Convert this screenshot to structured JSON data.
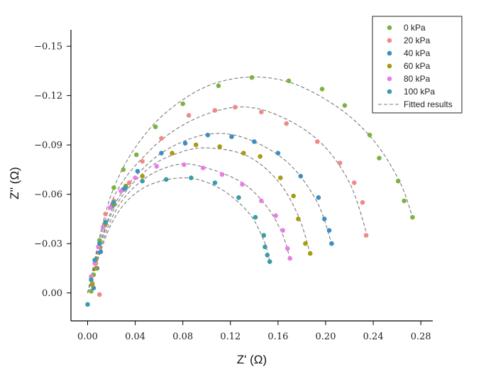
{
  "chart_data": {
    "type": "scatter",
    "title": "",
    "xlabel": "Z' (Ω)",
    "ylabel": "Z'' (Ω)",
    "xlim": [
      -0.014,
      0.29
    ],
    "ylim": [
      0.017,
      -0.16
    ],
    "y_axis_inverted": true,
    "xticks": [
      0.0,
      0.04,
      0.08,
      0.12,
      0.16,
      0.2,
      0.24,
      0.28
    ],
    "xtick_labels": [
      "0.00",
      "0.04",
      "0.08",
      "0.12",
      "0.16",
      "0.20",
      "0.24",
      "0.28"
    ],
    "yticks": [
      0.0,
      -0.03,
      -0.06,
      -0.09,
      -0.12,
      -0.15
    ],
    "ytick_labels": [
      "0.00",
      "−0.03",
      "−0.06",
      "−0.09",
      "−0.12",
      "−0.15"
    ],
    "grid": false,
    "legend_position": "top-right",
    "fit_label": "Fitted results",
    "fit_color": "#7a7a7a",
    "series": [
      {
        "name": "0 kPa",
        "color": "#7bb342",
        "x": [
          0.003,
          0.005,
          0.007,
          0.01,
          0.015,
          0.022,
          0.03,
          0.041,
          0.057,
          0.08,
          0.11,
          0.138,
          0.169,
          0.197,
          0.216,
          0.237,
          0.245,
          0.261,
          0.266,
          0.273
        ],
        "y": [
          -0.001,
          -0.011,
          -0.02,
          -0.032,
          -0.042,
          -0.064,
          -0.075,
          -0.084,
          -0.101,
          -0.115,
          -0.126,
          -0.131,
          -0.129,
          -0.124,
          -0.114,
          -0.096,
          -0.082,
          -0.068,
          -0.056,
          -0.046
        ],
        "fit": [
          [
            0.0,
            0.0
          ],
          [
            0.02,
            -0.06
          ],
          [
            0.05,
            -0.098
          ],
          [
            0.09,
            -0.122
          ],
          [
            0.13,
            -0.131
          ],
          [
            0.17,
            -0.128
          ],
          [
            0.21,
            -0.113
          ],
          [
            0.24,
            -0.093
          ],
          [
            0.262,
            -0.068
          ],
          [
            0.273,
            -0.046
          ]
        ]
      },
      {
        "name": "20 kPa",
        "color": "#ef8a84",
        "x": [
          0.004,
          0.007,
          0.01,
          0.015,
          0.022,
          0.035,
          0.046,
          0.062,
          0.085,
          0.107,
          0.124,
          0.146,
          0.167,
          0.193,
          0.212,
          0.224,
          0.231,
          0.234,
          0.01
        ],
        "y": [
          -0.006,
          -0.018,
          -0.028,
          -0.048,
          -0.056,
          -0.067,
          -0.08,
          -0.094,
          -0.108,
          -0.111,
          -0.113,
          -0.11,
          -0.103,
          -0.092,
          -0.079,
          -0.067,
          -0.055,
          -0.035,
          0.001
        ],
        "fit": [
          [
            0.0,
            0.0
          ],
          [
            0.02,
            -0.055
          ],
          [
            0.05,
            -0.085
          ],
          [
            0.085,
            -0.104
          ],
          [
            0.125,
            -0.113
          ],
          [
            0.16,
            -0.108
          ],
          [
            0.195,
            -0.092
          ],
          [
            0.22,
            -0.067
          ],
          [
            0.235,
            -0.035
          ]
        ]
      },
      {
        "name": "40 kPa",
        "color": "#3d8ec4",
        "x": [
          0.005,
          0.008,
          0.011,
          0.015,
          0.021,
          0.03,
          0.042,
          0.062,
          0.082,
          0.101,
          0.121,
          0.14,
          0.16,
          0.179,
          0.194,
          0.199,
          0.203,
          0.205
        ],
        "y": [
          -0.003,
          -0.015,
          -0.025,
          -0.042,
          -0.053,
          -0.063,
          -0.074,
          -0.085,
          -0.091,
          -0.096,
          -0.095,
          -0.092,
          -0.085,
          -0.071,
          -0.058,
          -0.045,
          -0.038,
          -0.03
        ],
        "fit": [
          [
            0.0,
            0.0
          ],
          [
            0.02,
            -0.05
          ],
          [
            0.05,
            -0.078
          ],
          [
            0.08,
            -0.092
          ],
          [
            0.11,
            -0.097
          ],
          [
            0.14,
            -0.092
          ],
          [
            0.17,
            -0.078
          ],
          [
            0.193,
            -0.055
          ],
          [
            0.205,
            -0.03
          ]
        ]
      },
      {
        "name": "60 kPa",
        "color": "#a59c14",
        "x": [
          0.004,
          0.007,
          0.01,
          0.015,
          0.022,
          0.032,
          0.046,
          0.071,
          0.091,
          0.111,
          0.131,
          0.145,
          0.162,
          0.173,
          0.177,
          0.183,
          0.187
        ],
        "y": [
          -0.005,
          -0.015,
          -0.028,
          -0.042,
          -0.054,
          -0.065,
          -0.071,
          -0.085,
          -0.09,
          -0.089,
          -0.085,
          -0.083,
          -0.07,
          -0.059,
          -0.045,
          -0.03,
          -0.024
        ],
        "fit": [
          [
            0.0,
            0.0
          ],
          [
            0.02,
            -0.048
          ],
          [
            0.05,
            -0.075
          ],
          [
            0.08,
            -0.086
          ],
          [
            0.105,
            -0.088
          ],
          [
            0.135,
            -0.083
          ],
          [
            0.16,
            -0.068
          ],
          [
            0.177,
            -0.047
          ],
          [
            0.187,
            -0.024
          ]
        ]
      },
      {
        "name": "80 kPa",
        "color": "#e77ee7",
        "x": [
          0.003,
          0.006,
          0.009,
          0.013,
          0.019,
          0.028,
          0.04,
          0.058,
          0.081,
          0.097,
          0.113,
          0.13,
          0.146,
          0.158,
          0.164,
          0.168,
          0.17
        ],
        "y": [
          -0.01,
          -0.018,
          -0.028,
          -0.04,
          -0.052,
          -0.062,
          -0.07,
          -0.077,
          -0.078,
          -0.076,
          -0.072,
          -0.066,
          -0.056,
          -0.047,
          -0.038,
          -0.027,
          -0.021
        ],
        "fit": [
          [
            0.0,
            0.0
          ],
          [
            0.02,
            -0.045
          ],
          [
            0.045,
            -0.068
          ],
          [
            0.075,
            -0.078
          ],
          [
            0.1,
            -0.076
          ],
          [
            0.13,
            -0.067
          ],
          [
            0.15,
            -0.053
          ],
          [
            0.163,
            -0.037
          ],
          [
            0.17,
            -0.021
          ]
        ]
      },
      {
        "name": "100 kPa",
        "color": "#3b9ba8",
        "x": [
          0.0,
          0.003,
          0.006,
          0.01,
          0.015,
          0.022,
          0.032,
          0.046,
          0.066,
          0.087,
          0.107,
          0.127,
          0.141,
          0.148,
          0.149,
          0.151,
          0.153
        ],
        "y": [
          0.007,
          -0.008,
          -0.02,
          -0.03,
          -0.043,
          -0.055,
          -0.064,
          -0.068,
          -0.069,
          -0.07,
          -0.067,
          -0.058,
          -0.046,
          -0.035,
          -0.028,
          -0.023,
          -0.019
        ],
        "fit": [
          [
            0.0,
            0.0
          ],
          [
            0.02,
            -0.042
          ],
          [
            0.045,
            -0.063
          ],
          [
            0.08,
            -0.07
          ],
          [
            0.11,
            -0.064
          ],
          [
            0.135,
            -0.049
          ],
          [
            0.148,
            -0.032
          ],
          [
            0.153,
            -0.019
          ]
        ]
      }
    ]
  }
}
